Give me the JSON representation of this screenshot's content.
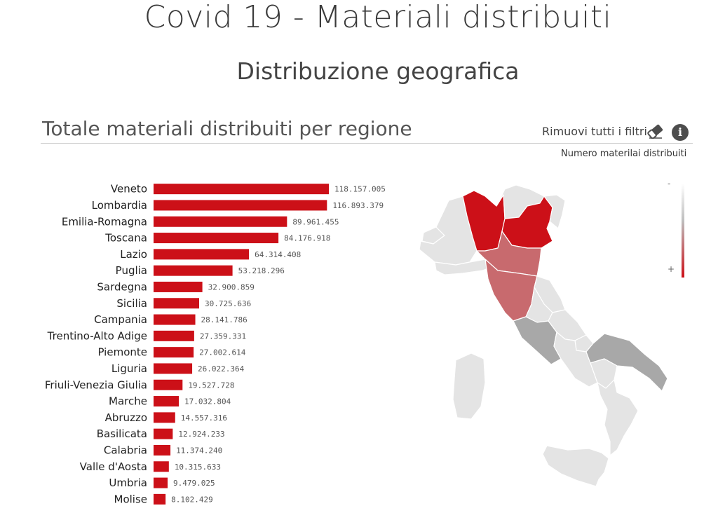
{
  "page": {
    "title": "Covid 19 - Materiali distribuiti",
    "subtitle": "Distribuzione geografica"
  },
  "panel": {
    "title": "Totale materiali distribuiti per regione",
    "clear_filters_label": "Rimuovi tutti i filtri",
    "eraser_icon": "eraser-icon",
    "info_icon": "info-icon",
    "info_glyph": "i"
  },
  "legend": {
    "title": "Numero materilai distribuiti",
    "min_symbol": "-",
    "max_symbol": "+",
    "colors": [
      "#ffffff",
      "#bdbdbd",
      "#cc1018"
    ]
  },
  "colors": {
    "bar": "#cc1018",
    "map_high": "#cc1018",
    "map_mid": "#c86a6e",
    "map_gray": "#a8a8a8",
    "map_light": "#e4e4e4",
    "map_border": "#ffffff"
  },
  "chart_data": {
    "type": "bar",
    "orientation": "horizontal",
    "categories": [
      "Veneto",
      "Lombardia",
      "Emilia-Romagna",
      "Toscana",
      "Lazio",
      "Puglia",
      "Sardegna",
      "Sicilia",
      "Campania",
      "Trentino-Alto Adige",
      "Piemonte",
      "Liguria",
      "Friuli-Venezia Giulia",
      "Marche",
      "Abruzzo",
      "Basilicata",
      "Calabria",
      "Valle d'Aosta",
      "Umbria",
      "Molise"
    ],
    "values": [
      118157005,
      116893379,
      89961455,
      84176918,
      64314408,
      53218296,
      32900859,
      30725636,
      28141786,
      27359331,
      27002614,
      26022364,
      19527728,
      17032804,
      14557316,
      12924233,
      11374240,
      10315633,
      9479025,
      8102429
    ],
    "labels": [
      "118.157.005",
      "116.893.379",
      "89.961.455",
      "84.176.918",
      "64.314.408",
      "53.218.296",
      "32.900.859",
      "30.725.636",
      "28.141.786",
      "27.359.331",
      "27.002.614",
      "26.022.364",
      "19.527.728",
      "17.032.804",
      "14.557.316",
      "12.924.233",
      "11.374.240",
      "10.315.633",
      "9.479.025",
      "8.102.429"
    ],
    "xlim": [
      0,
      118157005
    ],
    "grid": false
  },
  "map": {
    "type": "choropleth",
    "regions": [
      "Lombardia",
      "Veneto",
      "Emilia-Romagna",
      "Toscana",
      "Lazio",
      "Puglia",
      "Piemonte",
      "Liguria",
      "Trentino-Alto Adige",
      "Friuli-Venezia Giulia",
      "Marche",
      "Umbria",
      "Abruzzo",
      "Molise",
      "Campania",
      "Basilicata",
      "Calabria",
      "Sicilia",
      "Sardegna",
      "Valle d'Aosta"
    ]
  }
}
